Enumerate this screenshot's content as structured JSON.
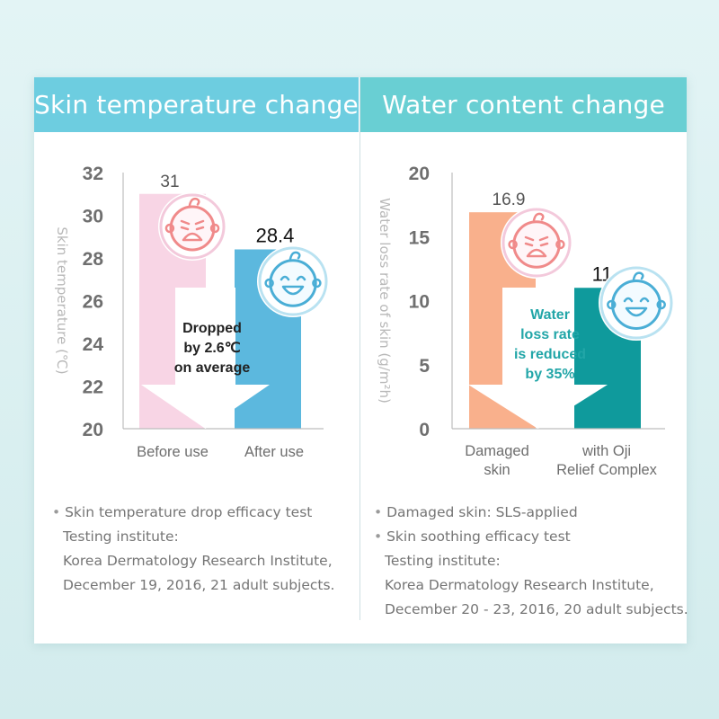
{
  "panels": {
    "left": {
      "title": "Skin temperature change"
    },
    "right": {
      "title": "Water content change"
    }
  },
  "colors": {
    "left_header": "#6dcde0",
    "right_header": "#69cfd3",
    "bar_before": "#f8d5e5",
    "bar_after": "#5cb8de",
    "bar_damaged": "#f9b08c",
    "bar_oji": "#0f9a9c",
    "callout_left": "#222222",
    "callout_right": "#22a6a8"
  },
  "chart_data": [
    {
      "type": "bar",
      "title": "Skin temperature change",
      "ylabel": "Skin temperature (℃)",
      "xlabel": "",
      "ylim": [
        20,
        32
      ],
      "yticks": [
        "20",
        "22",
        "24",
        "26",
        "28",
        "30",
        "32"
      ],
      "categories": [
        "Before use",
        "After use"
      ],
      "values": [
        31,
        28.4
      ],
      "value_labels": [
        "31",
        "28.4"
      ],
      "annotation": [
        "Dropped",
        "by 2.6℃",
        "on average"
      ],
      "icons": [
        "crying-baby-icon",
        "smiling-baby-icon"
      ]
    },
    {
      "type": "bar",
      "title": "Water content change",
      "ylabel": "Water loss rate of skin (g/m²h)",
      "xlabel": "",
      "ylim": [
        0,
        20
      ],
      "yticks": [
        "0",
        "5",
        "10",
        "15",
        "20"
      ],
      "categories": [
        [
          "Damaged",
          "skin"
        ],
        [
          "with Oji",
          "Relief Complex"
        ]
      ],
      "values": [
        16.9,
        11
      ],
      "value_labels": [
        "16.9",
        "11"
      ],
      "annotation": [
        "Water",
        "loss rate",
        "is reduced",
        "by 35%"
      ],
      "icons": [
        "crying-baby-icon",
        "smiling-baby-icon"
      ]
    }
  ],
  "notes": {
    "left": [
      "Skin temperature drop efficacy test",
      "Testing institute:",
      "Korea Dermatology Research Institute,",
      "December 19, 2016, 21 adult subjects."
    ],
    "right_line1": "Damaged skin: SLS-applied",
    "right": [
      "Skin soothing efficacy test",
      "Testing institute:",
      "Korea Dermatology Research Institute,",
      "December 20 - 23, 2016, 20 adult subjects."
    ]
  }
}
